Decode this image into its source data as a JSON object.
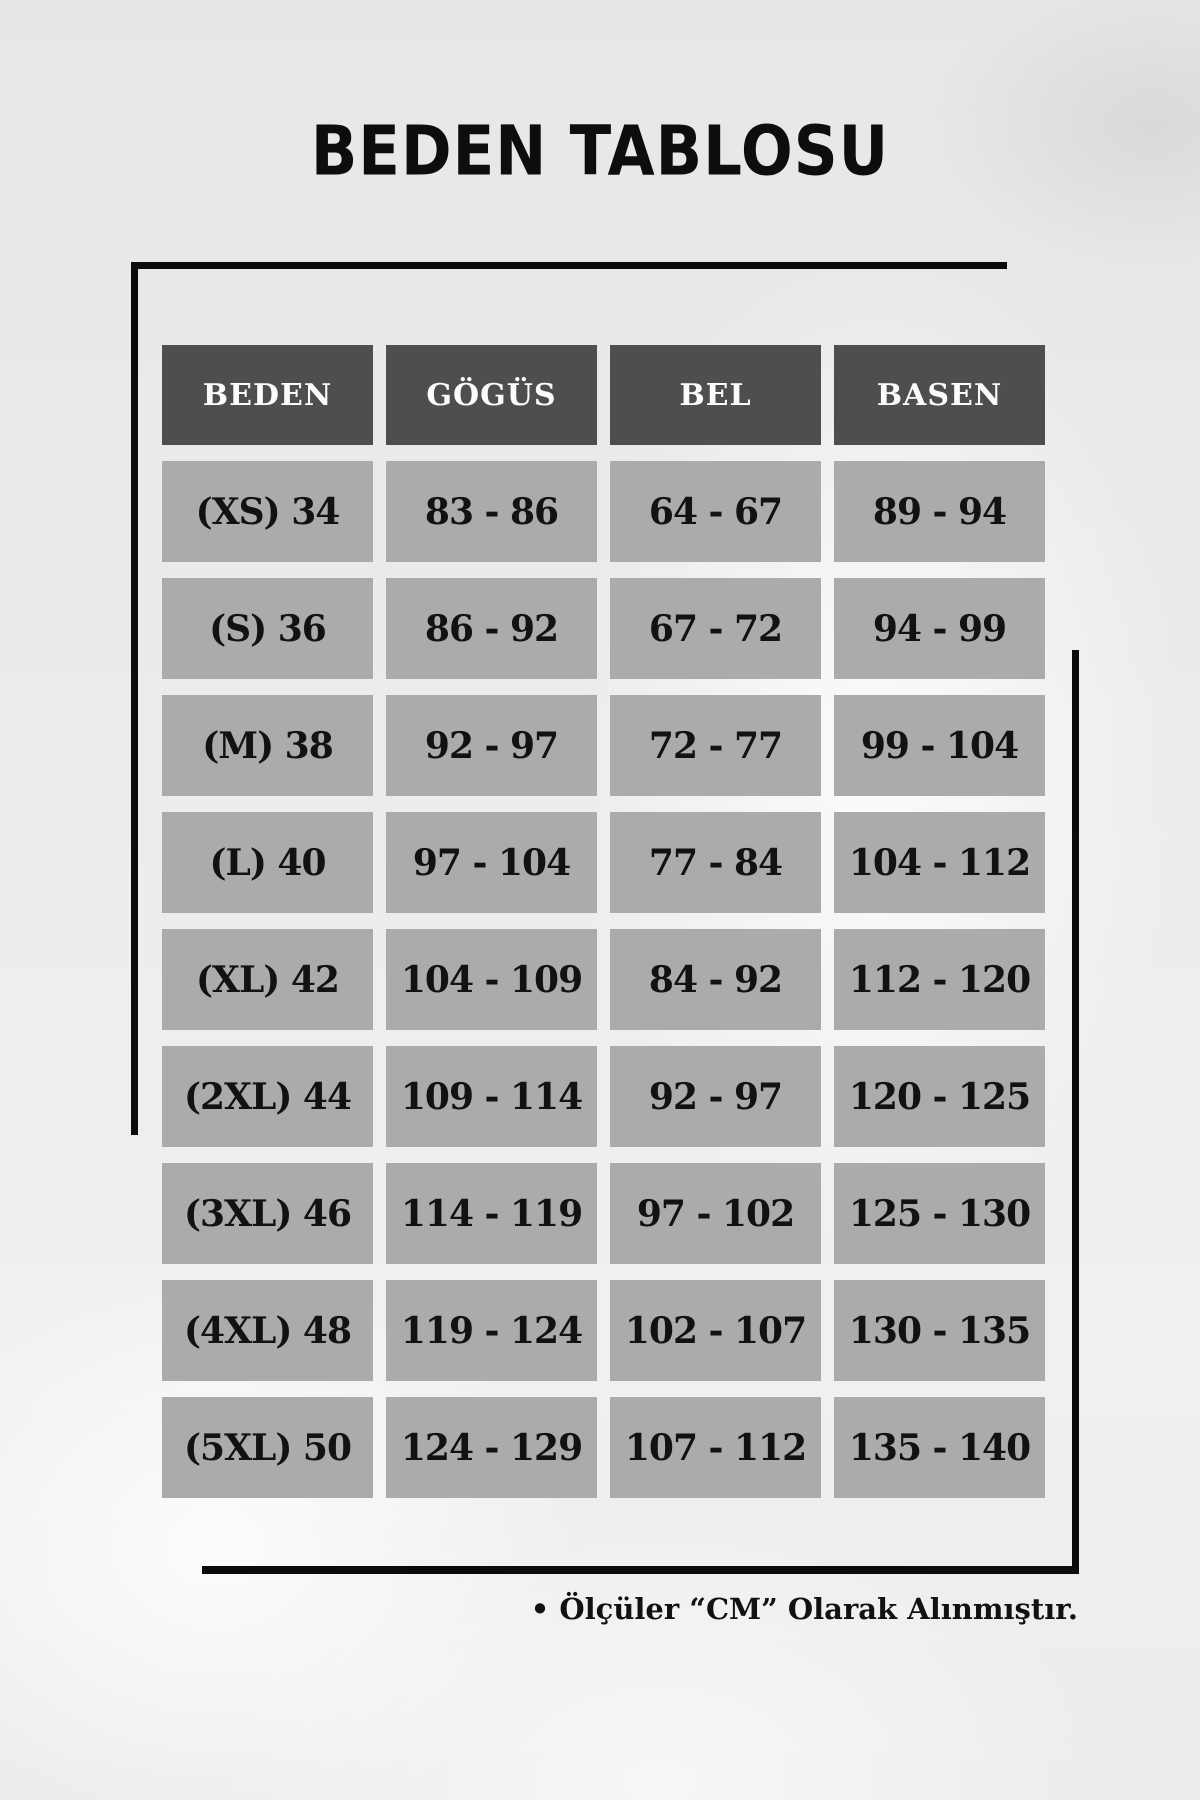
{
  "title": "BEDEN TABLOSU",
  "table": {
    "columns": [
      "BEDEN",
      "GÖGÜS",
      "BEL",
      "BASEN"
    ],
    "rows": [
      [
        "(XS) 34",
        "83 - 86",
        "64 - 67",
        "89 - 94"
      ],
      [
        "(S) 36",
        "86 - 92",
        "67 - 72",
        "94 - 99"
      ],
      [
        "(M) 38",
        "92 - 97",
        "72 - 77",
        "99 - 104"
      ],
      [
        "(L) 40",
        "97 - 104",
        "77 - 84",
        "104 - 112"
      ],
      [
        "(XL) 42",
        "104 - 109",
        "84 - 92",
        "112 - 120"
      ],
      [
        "(2XL) 44",
        "109 - 114",
        "92 - 97",
        "120 - 125"
      ],
      [
        "(3XL) 46",
        "114 - 119",
        "97 - 102",
        "125 - 130"
      ],
      [
        "(4XL) 48",
        "119 - 124",
        "102 - 107",
        "130 - 135"
      ],
      [
        "(5XL) 50",
        "124 - 129",
        "107 - 112",
        "135 - 140"
      ]
    ]
  },
  "footer": {
    "note": "• Ölçüler “CM” Olarak Alınmıştır."
  },
  "colors": {
    "background": "#ebebeb",
    "header_cell": "#4e4e4e",
    "header_text": "#fbfbfb",
    "data_cell": "#ababab",
    "data_text": "#121212",
    "frame_line": "#0b0b0b"
  },
  "units_note": "CM"
}
